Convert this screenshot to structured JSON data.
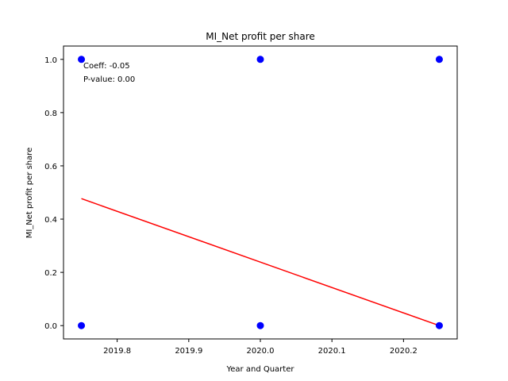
{
  "chart_data": {
    "type": "scatter",
    "title": "MI_Net profit per share",
    "xlabel": "Year and Quarter",
    "ylabel": "MI_Net profit per share",
    "xlim": [
      2019.725,
      2020.275
    ],
    "ylim": [
      -0.05,
      1.05
    ],
    "xticks": [
      2019.8,
      2019.9,
      2020.0,
      2020.1,
      2020.2
    ],
    "xtick_labels": [
      "2019.8",
      "2019.9",
      "2020.0",
      "2020.1",
      "2020.2"
    ],
    "yticks": [
      0.0,
      0.2,
      0.4,
      0.6,
      0.8,
      1.0
    ],
    "ytick_labels": [
      "0.0",
      "0.2",
      "0.4",
      "0.6",
      "0.8",
      "1.0"
    ],
    "grid": false,
    "points": {
      "x": [
        2019.75,
        2019.75,
        2020.0,
        2020.0,
        2020.25,
        2020.25
      ],
      "y": [
        1.0,
        0.0,
        1.0,
        0.0,
        1.0,
        0.0
      ],
      "color": "#0000ff"
    },
    "trendline": {
      "x": [
        2019.75,
        2020.25
      ],
      "y": [
        0.477,
        0.0
      ],
      "color": "#ff0000"
    },
    "annotations": [
      "Coeff: -0.05",
      "P-value: 0.00"
    ]
  }
}
